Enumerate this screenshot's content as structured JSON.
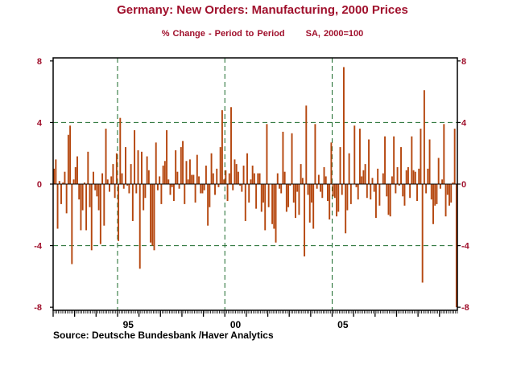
{
  "chart_data": {
    "type": "bar",
    "title": "Germany: New Orders: Manufacturing, 2000 Prices",
    "subtitle_left": "% Change - Period to Period",
    "subtitle_right": "SA, 2000=100",
    "source": "Source:  Deutsche Bundesbank /Haver Analytics",
    "ylim": [
      -8.2,
      8.2
    ],
    "y_ticks": [
      -8,
      -4,
      0,
      4,
      8
    ],
    "y_tick_labels": [
      "-8",
      "-4",
      "0",
      "4",
      "8"
    ],
    "x_tick_labels": [
      {
        "label": "95",
        "index": 36
      },
      {
        "label": "00",
        "index": 96
      },
      {
        "label": "05",
        "index": 156
      }
    ],
    "gridlines_x_index": [
      36,
      96,
      156
    ],
    "gridlines_y": [
      -4,
      4
    ],
    "bar_color": "#b5470f",
    "grid_color": "#1a6a2a",
    "text_color": "#a0102c",
    "start_year": 1991,
    "values": [
      1.0,
      1.6,
      -2.9,
      0.2,
      -1.3,
      0.1,
      0.8,
      -1.9,
      3.2,
      3.8,
      -5.2,
      0.3,
      1.1,
      1.8,
      -1.0,
      -3.0,
      -1.7,
      0.1,
      -3.0,
      2.1,
      -1.5,
      -4.3,
      0.8,
      -0.4,
      -0.8,
      -1.7,
      -3.9,
      0.7,
      -2.7,
      3.6,
      0.3,
      -0.5,
      0.5,
      1.3,
      -0.9,
      2.0,
      -3.7,
      4.3,
      0.7,
      -0.3,
      2.4,
      -0.1,
      -0.6,
      1.3,
      -2.4,
      3.5,
      -0.6,
      2.2,
      -5.5,
      2.1,
      -1.7,
      -0.9,
      1.8,
      0.9,
      -3.8,
      -4.0,
      -4.3,
      2.7,
      -0.4,
      0.5,
      -1.3,
      1.2,
      1.5,
      3.5,
      0.3,
      -0.7,
      -0.2,
      -1.1,
      2.2,
      0.8,
      -0.3,
      2.4,
      2.8,
      -1.3,
      1.5,
      0.3,
      1.6,
      0.6,
      0.6,
      -1.2,
      1.9,
      0.5,
      -0.6,
      -0.6,
      -0.4,
      1.2,
      -2.7,
      -1.5,
      2.0,
      0.7,
      -0.7,
      1.0,
      -0.2,
      2.4,
      4.8,
      0.3,
      0.9,
      -1.1,
      0.7,
      5.0,
      -0.4,
      1.6,
      1.3,
      0.8,
      -0.1,
      -0.5,
      1.2,
      -2.4,
      2.0,
      -1.2,
      0.3,
      1.2,
      0.7,
      -1.6,
      0.7,
      0.7,
      -1.8,
      -1.2,
      -3.0,
      3.9,
      -1.5,
      0.0,
      -2.6,
      -2.9,
      -3.8,
      0.7,
      -0.3,
      -0.6,
      3.4,
      0.8,
      -1.8,
      -1.5,
      -0.1,
      3.3,
      -1.2,
      -2.2,
      -0.5,
      -2.0,
      1.3,
      0.4,
      -4.7,
      5.1,
      -0.7,
      -2.5,
      -1.2,
      -2.9,
      3.9,
      -0.3,
      0.6,
      -0.5,
      -0.9,
      1.1,
      0.5,
      -1.1,
      -2.3,
      2.7,
      -0.8,
      -0.9,
      -2.1,
      -1.8,
      2.4,
      -0.7,
      7.6,
      -3.2,
      -1.7,
      2.0,
      -1.3,
      0.0,
      3.8,
      -0.2,
      -1.0,
      3.6,
      0.5,
      0.9,
      1.3,
      -0.9,
      2.9,
      -1.0,
      0.4,
      -0.5,
      -2.2,
      1.0,
      -1.4,
      0.0,
      0.7,
      3.1,
      -0.8,
      -2.0,
      -2.1,
      0.5,
      3.1,
      -0.6,
      1.1,
      -0.1,
      2.4,
      -0.8,
      -1.4,
      0.9,
      1.1,
      -0.9,
      3.1,
      0.9,
      0.8,
      -1.1,
      1.0,
      3.6,
      -6.4,
      6.1,
      -0.6,
      1.0,
      2.9,
      -1.0,
      -2.6,
      -1.4,
      -1.3,
      1.7,
      -0.3,
      0.3,
      3.9,
      -2.1,
      -0.7,
      -1.4,
      -1.2,
      0.1,
      3.6,
      -8.0
    ]
  }
}
